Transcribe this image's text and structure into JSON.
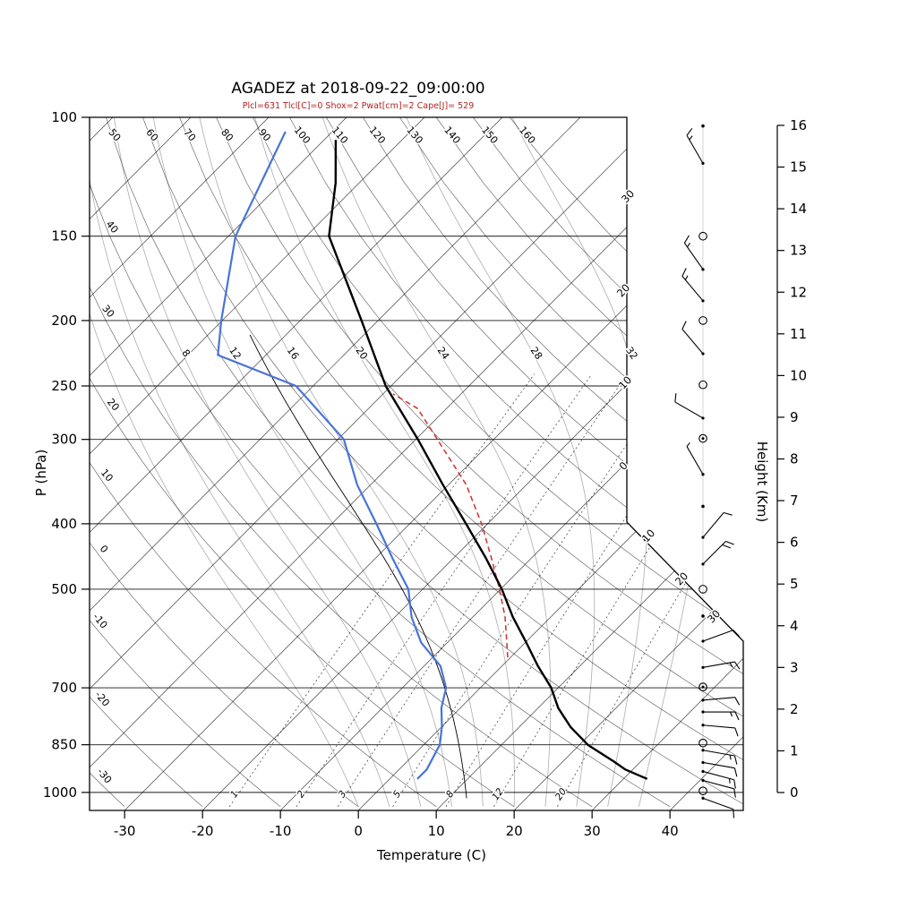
{
  "title": "AGADEZ at 2018-09-22_09:00:00",
  "params_line": "Plcl=631 Tlcl[C]=0 Shox=2 Pwat[cm]=2 Cape[J]= 529",
  "colors": {
    "temperature_line": "#000000",
    "dewpoint_line": "#4a74d8",
    "parcel_line": "#d03a30",
    "aux_moist_line": "#000000",
    "moist_adiabat": "#b5b5b5",
    "grid_line": "#000000",
    "subtitle_text": "#b22222"
  },
  "axes": {
    "pressure": {
      "label": "P (hPa)",
      "ticks": [
        100,
        150,
        200,
        250,
        300,
        400,
        500,
        700,
        850,
        1000
      ]
    },
    "temperature": {
      "label": "Temperature (C)",
      "ticks": [
        -30,
        -20,
        -10,
        0,
        10,
        20,
        30,
        40
      ]
    },
    "height": {
      "label": "Height (Km)",
      "ticks": [
        0,
        1,
        2,
        3,
        4,
        5,
        6,
        7,
        8,
        9,
        10,
        11,
        12,
        13,
        14,
        15,
        16
      ]
    }
  },
  "chart_data": {
    "type": "line",
    "subtype": "skew-t-log-p-sounding",
    "station": "AGADEZ",
    "datetime": "2018-09-22_09:00:00",
    "indices": {
      "Plcl_hPa": 631,
      "Tlcl_C": 0,
      "Showalter": 2,
      "Pwat_cm": 2,
      "Cape_J": 529
    },
    "pressure_range_hPa": [
      100,
      1050
    ],
    "temperature_axis_range_C": [
      -30,
      40
    ],
    "series": [
      {
        "name": "temperature",
        "units": "hPa,C",
        "points": [
          [
            955,
            33.5
          ],
          [
            925,
            29.5
          ],
          [
            900,
            27
          ],
          [
            850,
            21.5
          ],
          [
            800,
            17
          ],
          [
            750,
            13
          ],
          [
            700,
            9.5
          ],
          [
            650,
            5
          ],
          [
            600,
            0.5
          ],
          [
            550,
            -4.5
          ],
          [
            500,
            -9.5
          ],
          [
            450,
            -15.5
          ],
          [
            400,
            -22.5
          ],
          [
            350,
            -30.5
          ],
          [
            300,
            -39.5
          ],
          [
            250,
            -50.5
          ],
          [
            200,
            -62
          ],
          [
            150,
            -77
          ],
          [
            125,
            -83
          ],
          [
            108,
            -88.5
          ]
        ]
      },
      {
        "name": "dewpoint",
        "units": "hPa,C",
        "points": [
          [
            955,
            4
          ],
          [
            925,
            4
          ],
          [
            850,
            2.5
          ],
          [
            800,
            0.5
          ],
          [
            750,
            -2
          ],
          [
            700,
            -4
          ],
          [
            650,
            -7.5
          ],
          [
            600,
            -13
          ],
          [
            550,
            -17.5
          ],
          [
            500,
            -21.5
          ],
          [
            450,
            -27.5
          ],
          [
            400,
            -34
          ],
          [
            350,
            -41.5
          ],
          [
            300,
            -49
          ],
          [
            250,
            -62
          ],
          [
            225,
            -76
          ],
          [
            200,
            -80
          ],
          [
            150,
            -89
          ],
          [
            105,
            -96
          ]
        ]
      },
      {
        "name": "parcel_ascent",
        "units": "hPa,C",
        "style": "dashed",
        "points": [
          [
            631,
            0
          ],
          [
            600,
            -2
          ],
          [
            550,
            -5.5
          ],
          [
            500,
            -9.8
          ],
          [
            450,
            -14.8
          ],
          [
            400,
            -20.5
          ],
          [
            350,
            -27.5
          ],
          [
            300,
            -37
          ],
          [
            270,
            -43.5
          ],
          [
            257,
            -48.5
          ]
        ]
      },
      {
        "name": "parcel_moist_adiabat",
        "style": "thin-solid",
        "theta_w_C": 14
      }
    ],
    "background_lines": {
      "isotherms_C": {
        "min": -120,
        "max": 40,
        "step": 10
      },
      "dry_adiabats_C": [
        -30,
        -20,
        -10,
        0,
        10,
        20,
        30,
        40,
        50,
        60,
        70,
        80,
        90,
        100,
        110,
        120,
        130,
        140,
        150,
        160
      ],
      "dry_adiabat_top_labels": [
        50,
        60,
        70,
        80,
        90,
        100,
        110,
        120,
        130,
        140,
        150,
        160
      ],
      "dry_adiabat_left_labels": [
        40,
        30,
        20,
        10,
        0,
        -10,
        -20,
        -30
      ],
      "moist_adiabat_curves_C": [
        0,
        4,
        8,
        12,
        16,
        20,
        24,
        28,
        32,
        36
      ],
      "moist_adiabat_labels_C": [
        8,
        12,
        16,
        20,
        24,
        28,
        32
      ],
      "mixing_ratio_g_per_kg": [
        1,
        2,
        3,
        5,
        8,
        12,
        20
      ],
      "right_edge_isotherm_labels": [
        {
          "text": "30",
          "x": 704,
          "y": 222
        },
        {
          "text": "20",
          "x": 699,
          "y": 327
        },
        {
          "text": "10",
          "x": 701,
          "y": 430
        },
        {
          "text": "0",
          "x": 699,
          "y": 523
        },
        {
          "text": "10",
          "x": 727,
          "y": 601
        },
        {
          "text": "20",
          "x": 764,
          "y": 649
        },
        {
          "text": "30",
          "x": 800,
          "y": 691
        }
      ]
    },
    "wind_barbs": [
      {
        "p": 103,
        "style": "dot"
      },
      {
        "p": 117,
        "style": "barb",
        "dir": 330,
        "spd": 15
      },
      {
        "p": 150,
        "style": "circle"
      },
      {
        "p": 168,
        "style": "barb",
        "dir": 325,
        "spd": 15
      },
      {
        "p": 187,
        "style": "barb",
        "dir": 320,
        "spd": 15
      },
      {
        "p": 200,
        "style": "circle"
      },
      {
        "p": 224,
        "style": "barb",
        "dir": 320,
        "spd": 10
      },
      {
        "p": 249,
        "style": "circle"
      },
      {
        "p": 279,
        "style": "barb",
        "dir": 300,
        "spd": 10
      },
      {
        "p": 299,
        "style": "circle-dot"
      },
      {
        "p": 338,
        "style": "barb",
        "dir": 330,
        "spd": 5
      },
      {
        "p": 377,
        "style": "dot"
      },
      {
        "p": 419,
        "style": "barb",
        "dir": 40,
        "spd": 10
      },
      {
        "p": 459,
        "style": "barb",
        "dir": 45,
        "spd": 20
      },
      {
        "p": 500,
        "style": "circle"
      },
      {
        "p": 548,
        "style": "dot"
      },
      {
        "p": 597,
        "style": "barb",
        "dir": 70,
        "spd": 10
      },
      {
        "p": 653,
        "style": "barb",
        "dir": 80,
        "spd": 15
      },
      {
        "p": 698,
        "style": "circle-dot"
      },
      {
        "p": 730,
        "style": "barb",
        "dir": 85,
        "spd": 10
      },
      {
        "p": 760,
        "style": "barb",
        "dir": 90,
        "spd": 15
      },
      {
        "p": 795,
        "style": "barb",
        "dir": 95,
        "spd": 10
      },
      {
        "p": 845,
        "style": "circle"
      },
      {
        "p": 866,
        "style": "barb",
        "dir": 100,
        "spd": 15
      },
      {
        "p": 903,
        "style": "barb",
        "dir": 100,
        "spd": 10
      },
      {
        "p": 931,
        "style": "barb",
        "dir": 105,
        "spd": 15
      },
      {
        "p": 960,
        "style": "barb",
        "dir": 105,
        "spd": 10
      },
      {
        "p": 995,
        "style": "circle"
      },
      {
        "p": 1020,
        "style": "barb",
        "dir": 110,
        "spd": 10
      }
    ]
  }
}
